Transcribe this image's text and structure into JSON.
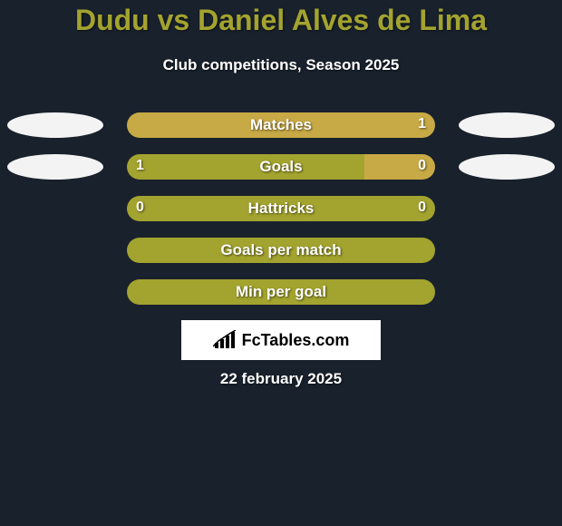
{
  "background_color": "#18212c",
  "title": {
    "text": "Dudu vs Daniel Alves de Lima",
    "color": "#a3a32f",
    "fontsize": 32
  },
  "subtitle": {
    "text": "Club competitions, Season 2025",
    "color": "#ffffff",
    "fontsize": 17
  },
  "player_left": {
    "avatar_color": "#f3f3f3",
    "avatar_w": 106,
    "avatar_h": 28
  },
  "player_right": {
    "avatar_color": "#f3f3f3",
    "avatar_w": 106,
    "avatar_h": 28
  },
  "bar_style": {
    "track_width": 340,
    "track_height": 28,
    "border_radius": 14,
    "label_color": "#ffffff",
    "label_fontsize": 17,
    "value_color": "#ffffff",
    "value_fontsize": 16,
    "left_color": "#a3a32f",
    "right_color": "#c7a945"
  },
  "bars": [
    {
      "label": "Matches",
      "left_value": "",
      "right_value": "1",
      "left_pct": 0,
      "right_pct": 100,
      "show_left_avatar": true,
      "show_right_avatar": true
    },
    {
      "label": "Goals",
      "left_value": "1",
      "right_value": "0",
      "left_pct": 77,
      "right_pct": 23,
      "show_left_avatar": true,
      "show_right_avatar": true
    },
    {
      "label": "Hattricks",
      "left_value": "0",
      "right_value": "0",
      "left_pct": 100,
      "right_pct": 0,
      "show_left_avatar": false,
      "show_right_avatar": false
    },
    {
      "label": "Goals per match",
      "left_value": "",
      "right_value": "",
      "left_pct": 100,
      "right_pct": 0,
      "show_left_avatar": false,
      "show_right_avatar": false
    },
    {
      "label": "Min per goal",
      "left_value": "",
      "right_value": "",
      "left_pct": 100,
      "right_pct": 0,
      "show_left_avatar": false,
      "show_right_avatar": false
    }
  ],
  "logo": {
    "box_bg": "#ffffff",
    "icon_color": "#000000",
    "text": "FcTables.com"
  },
  "date": {
    "text": "22 february 2025",
    "color": "#ffffff",
    "fontsize": 17
  }
}
